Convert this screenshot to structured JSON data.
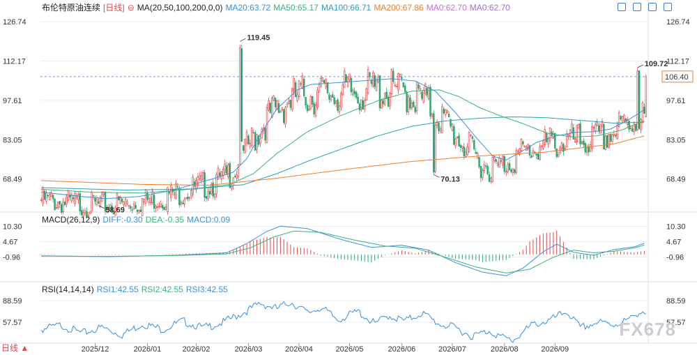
{
  "header": {
    "instrument": "布伦特原油连续",
    "period": "[日线]",
    "ma_label": "MA(20,50,100,200,0,0)",
    "ma20": "MA20:63.72",
    "ma50": "MA50:65.17",
    "ma100": "MA100:66.71",
    "ma200": "MA200:67.86",
    "ma0a": "MA0:62.70",
    "ma0b": "MA0:62.70"
  },
  "macd_header": {
    "label": "MACD(26,12,9)",
    "diff": "DIFF:-0.30",
    "dea": "DEA:-0.35",
    "macd": "MACD:0.09"
  },
  "rsi_header": {
    "label": "RSI(14,14,14)",
    "rsi1": "RSI1:42.55",
    "rsi2": "RSI2:42.55",
    "rsi3": "RSI3:42.55"
  },
  "watermark": "FX678",
  "bottom_left": "日线 ▲",
  "colors": {
    "up": "#e04a4a",
    "down": "#2fa872",
    "ma20": "#3a8fd8",
    "ma50": "#38b27a",
    "ma100": "#26a0b8",
    "ma200": "#f07c2a",
    "ma0": "#c76fd0",
    "diff": "#3a8fd8",
    "dea": "#38b27a",
    "rsi": "#3a8fd8",
    "grid": "#e9ecf0",
    "last_price_tag": "#f07c2a"
  },
  "icons": [
    "settings-icon",
    "expand-icon",
    "minimize-icon",
    "close-icon"
  ],
  "chart_data": [
    {
      "type": "candlestick",
      "title": "布伦特原油连续 [日线]",
      "y_ticks": [
        "126.74",
        "112.17",
        "97.61",
        "83.05",
        "68.49"
      ],
      "y_tick_values": [
        126.74,
        112.17,
        97.61,
        83.05,
        68.49
      ],
      "ylim": [
        57.3,
        129.6
      ],
      "x_ticks": [
        "2025/12",
        "2026/01",
        "2026/02",
        "2026/03",
        "2026/04",
        "2026/05",
        "2026/06",
        "2026/07",
        "2026/08",
        "2026/09"
      ],
      "annotations": [
        {
          "text": "119.45",
          "value": 119.45,
          "kind": "high"
        },
        {
          "text": "58.69",
          "value": 58.69,
          "kind": "low"
        },
        {
          "text": "70.13",
          "value": 70.13,
          "kind": "low"
        },
        {
          "text": "109.72",
          "value": 109.72,
          "kind": "high"
        }
      ],
      "last_price": {
        "text": "106.40",
        "value": 106.4
      },
      "series": [
        {
          "name": "MA20",
          "anchors": [
            [
              0,
              63.6
            ],
            [
              20,
              62.3
            ],
            [
              38,
              61.2
            ],
            [
              58,
              62.0
            ],
            [
              78,
              64.3
            ],
            [
              102,
              68.6
            ],
            [
              114,
              71.0
            ],
            [
              122,
              76.0
            ],
            [
              130,
              85.0
            ],
            [
              140,
              94.5
            ],
            [
              152,
              101.5
            ],
            [
              160,
              103.5
            ],
            [
              172,
              104.0
            ],
            [
              190,
              104.8
            ],
            [
              208,
              105.6
            ],
            [
              222,
              104.8
            ],
            [
              234,
              101.0
            ],
            [
              246,
              93.0
            ],
            [
              258,
              84.0
            ],
            [
              268,
              77.0
            ],
            [
              276,
              75.5
            ],
            [
              286,
              79.0
            ],
            [
              294,
              82.0
            ],
            [
              306,
              84.5
            ],
            [
              318,
              85.8
            ],
            [
              328,
              86.0
            ],
            [
              338,
              87.0
            ],
            [
              346,
              89.5
            ],
            [
              354,
              92.5
            ],
            [
              360,
              95.0
            ]
          ]
        },
        {
          "name": "MA50",
          "anchors": [
            [
              0,
              64.7
            ],
            [
              30,
              63.6
            ],
            [
              60,
              63.3
            ],
            [
              90,
              64.8
            ],
            [
              112,
              66.5
            ],
            [
              126,
              70.5
            ],
            [
              140,
              78.0
            ],
            [
              158,
              86.0
            ],
            [
              178,
              92.0
            ],
            [
              200,
              97.5
            ],
            [
              220,
              101.0
            ],
            [
              236,
              101.5
            ],
            [
              248,
              99.0
            ],
            [
              260,
              95.0
            ],
            [
              272,
              92.0
            ],
            [
              286,
              89.0
            ],
            [
              300,
              85.5
            ],
            [
              316,
              84.0
            ],
            [
              330,
              84.5
            ],
            [
              344,
              86.5
            ],
            [
              360,
              90.5
            ]
          ]
        },
        {
          "name": "MA100",
          "anchors": [
            [
              0,
              65.3
            ],
            [
              50,
              64.4
            ],
            [
              90,
              64.8
            ],
            [
              120,
              66.4
            ],
            [
              140,
              70.5
            ],
            [
              160,
              75.5
            ],
            [
              180,
              80.0
            ],
            [
              200,
              84.5
            ],
            [
              220,
              88.0
            ],
            [
              240,
              90.0
            ],
            [
              260,
              91.0
            ],
            [
              280,
              91.5
            ],
            [
              300,
              91.2
            ],
            [
              320,
              90.2
            ],
            [
              340,
              89.2
            ],
            [
              360,
              89.6
            ]
          ]
        },
        {
          "name": "MA200",
          "anchors": [
            [
              0,
              67.9
            ],
            [
              60,
              66.5
            ],
            [
              100,
              66.2
            ],
            [
              140,
              68.8
            ],
            [
              180,
              72.0
            ],
            [
              220,
              75.0
            ],
            [
              260,
              77.0
            ],
            [
              300,
              78.5
            ],
            [
              340,
              81.5
            ],
            [
              360,
              84.8
            ]
          ]
        },
        {
          "name": "MA0",
          "anchors": [
            [
              0,
              62.7
            ],
            [
              360,
              62.7
            ]
          ]
        }
      ]
    },
    {
      "type": "bar",
      "title": "MACD(26,12,9)",
      "y_ticks": [
        "10.30",
        "4.67",
        "-0.96"
      ],
      "y_tick_values": [
        10.3,
        4.67,
        -0.96
      ],
      "ylim": [
        -9.0,
        12.0
      ],
      "series": [
        {
          "name": "DIFF",
          "anchors": [
            [
              0,
              -0.5
            ],
            [
              40,
              -0.8
            ],
            [
              80,
              -0.3
            ],
            [
              110,
              0.6
            ],
            [
              122,
              4.0
            ],
            [
              134,
              8.5
            ],
            [
              142,
              10.4
            ],
            [
              158,
              9.5
            ],
            [
              178,
              5.5
            ],
            [
              196,
              2.6
            ],
            [
              214,
              3.4
            ],
            [
              230,
              1.6
            ],
            [
              246,
              -3.0
            ],
            [
              262,
              -6.5
            ],
            [
              276,
              -7.8
            ],
            [
              286,
              -5.0
            ],
            [
              298,
              1.0
            ],
            [
              306,
              3.8
            ],
            [
              316,
              0.8
            ],
            [
              328,
              -0.3
            ],
            [
              340,
              1.8
            ],
            [
              352,
              2.8
            ],
            [
              360,
              4.5
            ]
          ]
        },
        {
          "name": "DEA",
          "anchors": [
            [
              0,
              -0.6
            ],
            [
              40,
              -0.7
            ],
            [
              80,
              -0.4
            ],
            [
              110,
              0.2
            ],
            [
              124,
              2.4
            ],
            [
              138,
              6.4
            ],
            [
              150,
              8.6
            ],
            [
              166,
              8.1
            ],
            [
              186,
              5.3
            ],
            [
              204,
              3.1
            ],
            [
              222,
              2.3
            ],
            [
              240,
              -1.0
            ],
            [
              258,
              -4.6
            ],
            [
              276,
              -6.8
            ],
            [
              290,
              -5.4
            ],
            [
              304,
              -1.0
            ],
            [
              316,
              1.6
            ],
            [
              328,
              0.6
            ],
            [
              340,
              1.2
            ],
            [
              352,
              2.4
            ],
            [
              360,
              3.8
            ]
          ]
        }
      ]
    },
    {
      "type": "line",
      "title": "RSI(14,14,14)",
      "y_ticks": [
        "88.59",
        "57.57"
      ],
      "y_tick_values": [
        88.59,
        57.57
      ],
      "ylim": [
        29.0,
        102.0
      ],
      "series": [
        {
          "name": "RSI1",
          "anchors": [
            [
              0,
              50
            ],
            [
              12,
              56
            ],
            [
              24,
              44
            ],
            [
              36,
              53
            ],
            [
              48,
              42
            ],
            [
              60,
              58
            ],
            [
              72,
              50
            ],
            [
              84,
              62
            ],
            [
              96,
              52
            ],
            [
              108,
              60
            ],
            [
              118,
              72
            ],
            [
              126,
              82
            ],
            [
              130,
              88
            ],
            [
              140,
              80
            ],
            [
              148,
              90
            ],
            [
              158,
              74
            ],
            [
              166,
              82
            ],
            [
              176,
              64
            ],
            [
              188,
              76
            ],
            [
              198,
              58
            ],
            [
              206,
              70
            ],
            [
              216,
              62
            ],
            [
              226,
              74
            ],
            [
              236,
              58
            ],
            [
              246,
              52
            ],
            [
              256,
              40
            ],
            [
              266,
              48
            ],
            [
              274,
              38
            ],
            [
              280,
              34
            ],
            [
              286,
              46
            ],
            [
              292,
              57
            ],
            [
              302,
              63
            ],
            [
              312,
              76
            ],
            [
              320,
              52
            ],
            [
              330,
              60
            ],
            [
              340,
              57
            ],
            [
              350,
              65
            ],
            [
              356,
              78
            ],
            [
              360,
              71
            ]
          ]
        }
      ]
    }
  ],
  "x_labels": [
    "2025/12",
    "2026/01",
    "2026/02",
    "2026/03",
    "2026/04",
    "2026/05",
    "2026/06",
    "2026/07",
    "2026/08",
    "2026/09"
  ]
}
